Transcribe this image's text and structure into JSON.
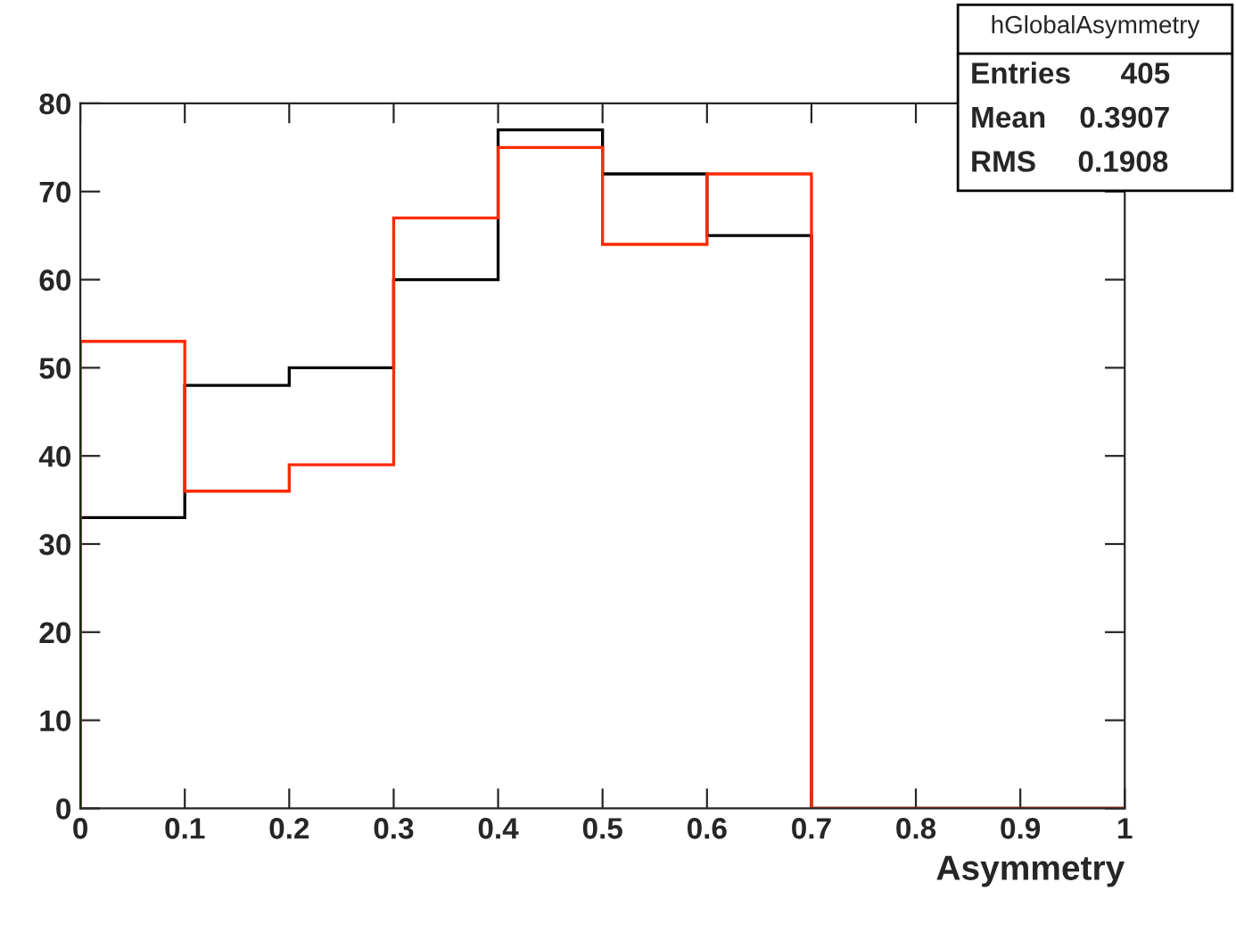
{
  "chart_data": {
    "type": "histogram",
    "bins": [
      0,
      0.1,
      0.2,
      0.3,
      0.4,
      0.5,
      0.6,
      0.7,
      0.8,
      0.9,
      1
    ],
    "series": [
      {
        "color": "#000000",
        "values": [
          33,
          48,
          50,
          60,
          77,
          72,
          65,
          0,
          0,
          0
        ]
      },
      {
        "color": "#ff2a00",
        "values": [
          53,
          36,
          39,
          67,
          75,
          64,
          72,
          0,
          0,
          0
        ]
      }
    ],
    "xlabel": "Asymmetry",
    "xlim": [
      0,
      1
    ],
    "xticks": [
      0,
      0.1,
      0.2,
      0.3,
      0.4,
      0.5,
      0.6,
      0.7,
      0.8,
      0.9,
      1
    ],
    "ylim": [
      0,
      80
    ],
    "yticks": [
      0,
      10,
      20,
      30,
      40,
      50,
      60,
      70,
      80
    ],
    "annotations": [
      "hGlobalAsymmetry",
      "Entries      405",
      "Mean    0.3907",
      "RMS     0.1908"
    ],
    "grid": false,
    "legend": false
  }
}
